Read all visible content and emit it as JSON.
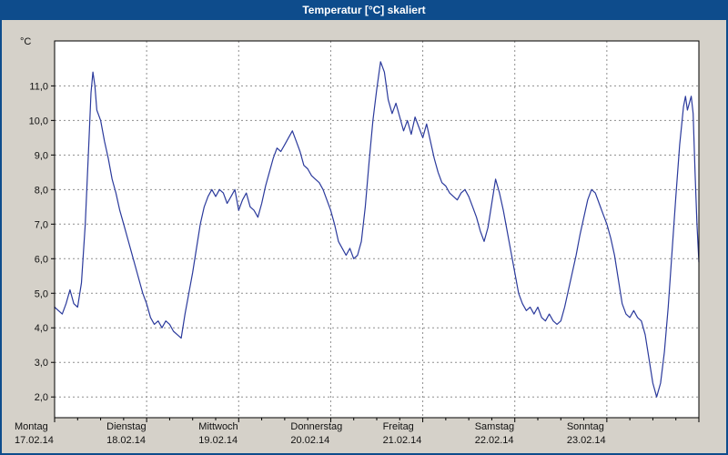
{
  "header": {
    "title": "Temperatur [°C] skaliert"
  },
  "chart_data": {
    "type": "line",
    "title": "Temperatur [°C] skaliert",
    "ylabel": "°C",
    "xlabel": "",
    "xmax": 168,
    "ylim": [
      1.4,
      12.3
    ],
    "grid": true,
    "legend": "none",
    "y_ticks": [
      {
        "v": 11,
        "label": "11,0"
      },
      {
        "v": 10,
        "label": "10,0"
      },
      {
        "v": 9,
        "label": "9,0"
      },
      {
        "v": 8,
        "label": "8,0"
      },
      {
        "v": 7,
        "label": "7,0"
      },
      {
        "v": 6,
        "label": "6,0"
      },
      {
        "v": 5,
        "label": "5,0"
      },
      {
        "v": 4,
        "label": "4,0"
      },
      {
        "v": 3,
        "label": "3,0"
      },
      {
        "v": 2,
        "label": "2,0"
      }
    ],
    "x_labels": [
      {
        "day": "Montag",
        "date": "17.02.14"
      },
      {
        "day": "Dienstag",
        "date": "18.02.14"
      },
      {
        "day": "Mittwoch",
        "date": "19.02.14"
      },
      {
        "day": "Donnerstag",
        "date": "20.02.14"
      },
      {
        "day": "Freitag",
        "date": "21.02.14"
      },
      {
        "day": "Samstag",
        "date": "22.02.14"
      },
      {
        "day": "Sonntag",
        "date": "23.02.14"
      }
    ],
    "series": [
      {
        "name": "Temperatur",
        "points": [
          [
            0,
            4.6
          ],
          [
            1,
            4.5
          ],
          [
            2,
            4.4
          ],
          [
            3,
            4.7
          ],
          [
            4,
            5.1
          ],
          [
            5,
            4.7
          ],
          [
            6,
            4.6
          ],
          [
            7,
            5.3
          ],
          [
            8,
            7.0
          ],
          [
            9,
            9.5
          ],
          [
            9.5,
            10.8
          ],
          [
            10,
            11.4
          ],
          [
            10.5,
            11.0
          ],
          [
            11,
            10.3
          ],
          [
            12,
            10.0
          ],
          [
            13,
            9.4
          ],
          [
            14,
            8.9
          ],
          [
            15,
            8.3
          ],
          [
            16,
            7.9
          ],
          [
            17,
            7.4
          ],
          [
            18,
            7.0
          ],
          [
            19,
            6.6
          ],
          [
            20,
            6.2
          ],
          [
            21,
            5.8
          ],
          [
            22,
            5.4
          ],
          [
            23,
            5.0
          ],
          [
            24,
            4.7
          ],
          [
            25,
            4.3
          ],
          [
            26,
            4.1
          ],
          [
            27,
            4.2
          ],
          [
            28,
            4.0
          ],
          [
            29,
            4.2
          ],
          [
            30,
            4.1
          ],
          [
            31,
            3.9
          ],
          [
            32,
            3.8
          ],
          [
            33,
            3.7
          ],
          [
            34,
            4.4
          ],
          [
            35,
            5.0
          ],
          [
            36,
            5.6
          ],
          [
            37,
            6.3
          ],
          [
            38,
            7.0
          ],
          [
            39,
            7.5
          ],
          [
            40,
            7.8
          ],
          [
            41,
            8.0
          ],
          [
            42,
            7.8
          ],
          [
            43,
            8.0
          ],
          [
            44,
            7.9
          ],
          [
            45,
            7.6
          ],
          [
            46,
            7.8
          ],
          [
            47,
            8.0
          ],
          [
            48,
            7.4
          ],
          [
            49,
            7.7
          ],
          [
            50,
            7.9
          ],
          [
            51,
            7.5
          ],
          [
            52,
            7.4
          ],
          [
            53,
            7.2
          ],
          [
            54,
            7.6
          ],
          [
            55,
            8.1
          ],
          [
            56,
            8.5
          ],
          [
            57,
            8.9
          ],
          [
            58,
            9.2
          ],
          [
            59,
            9.1
          ],
          [
            60,
            9.3
          ],
          [
            61,
            9.5
          ],
          [
            62,
            9.7
          ],
          [
            63,
            9.4
          ],
          [
            64,
            9.1
          ],
          [
            65,
            8.7
          ],
          [
            66,
            8.6
          ],
          [
            67,
            8.4
          ],
          [
            68,
            8.3
          ],
          [
            69,
            8.2
          ],
          [
            70,
            8.0
          ],
          [
            71,
            7.7
          ],
          [
            72,
            7.4
          ],
          [
            73,
            7.0
          ],
          [
            74,
            6.5
          ],
          [
            75,
            6.3
          ],
          [
            76,
            6.1
          ],
          [
            77,
            6.3
          ],
          [
            78,
            6.0
          ],
          [
            79,
            6.1
          ],
          [
            80,
            6.5
          ],
          [
            81,
            7.5
          ],
          [
            82,
            8.8
          ],
          [
            83,
            10.0
          ],
          [
            84,
            10.9
          ],
          [
            85,
            11.7
          ],
          [
            86,
            11.4
          ],
          [
            87,
            10.6
          ],
          [
            88,
            10.2
          ],
          [
            89,
            10.5
          ],
          [
            90,
            10.1
          ],
          [
            91,
            9.7
          ],
          [
            92,
            10.0
          ],
          [
            93,
            9.6
          ],
          [
            94,
            10.1
          ],
          [
            95,
            9.8
          ],
          [
            96,
            9.5
          ],
          [
            97,
            9.9
          ],
          [
            98,
            9.4
          ],
          [
            99,
            8.9
          ],
          [
            100,
            8.5
          ],
          [
            101,
            8.2
          ],
          [
            102,
            8.1
          ],
          [
            103,
            7.9
          ],
          [
            104,
            7.8
          ],
          [
            105,
            7.7
          ],
          [
            106,
            7.9
          ],
          [
            107,
            8.0
          ],
          [
            108,
            7.8
          ],
          [
            109,
            7.5
          ],
          [
            110,
            7.2
          ],
          [
            111,
            6.8
          ],
          [
            112,
            6.5
          ],
          [
            113,
            6.9
          ],
          [
            114,
            7.6
          ],
          [
            115,
            8.3
          ],
          [
            116,
            7.9
          ],
          [
            117,
            7.4
          ],
          [
            118,
            6.8
          ],
          [
            119,
            6.2
          ],
          [
            120,
            5.6
          ],
          [
            121,
            5.0
          ],
          [
            122,
            4.7
          ],
          [
            123,
            4.5
          ],
          [
            124,
            4.6
          ],
          [
            125,
            4.4
          ],
          [
            126,
            4.6
          ],
          [
            127,
            4.3
          ],
          [
            128,
            4.2
          ],
          [
            129,
            4.4
          ],
          [
            130,
            4.2
          ],
          [
            131,
            4.1
          ],
          [
            132,
            4.2
          ],
          [
            133,
            4.6
          ],
          [
            134,
            5.1
          ],
          [
            135,
            5.6
          ],
          [
            136,
            6.1
          ],
          [
            137,
            6.7
          ],
          [
            138,
            7.2
          ],
          [
            139,
            7.7
          ],
          [
            140,
            8.0
          ],
          [
            141,
            7.9
          ],
          [
            142,
            7.6
          ],
          [
            143,
            7.3
          ],
          [
            144,
            7.0
          ],
          [
            145,
            6.6
          ],
          [
            146,
            6.1
          ],
          [
            147,
            5.4
          ],
          [
            148,
            4.7
          ],
          [
            149,
            4.4
          ],
          [
            150,
            4.3
          ],
          [
            151,
            4.5
          ],
          [
            152,
            4.3
          ],
          [
            153,
            4.2
          ],
          [
            154,
            3.8
          ],
          [
            155,
            3.1
          ],
          [
            156,
            2.4
          ],
          [
            157,
            2.0
          ],
          [
            158,
            2.4
          ],
          [
            159,
            3.3
          ],
          [
            160,
            4.6
          ],
          [
            161,
            6.2
          ],
          [
            162,
            7.8
          ],
          [
            163,
            9.3
          ],
          [
            164,
            10.4
          ],
          [
            164.5,
            10.7
          ],
          [
            165,
            10.3
          ],
          [
            165.5,
            10.5
          ],
          [
            166,
            10.7
          ],
          [
            166.5,
            10.2
          ],
          [
            167,
            8.5
          ],
          [
            167.5,
            7.0
          ],
          [
            168,
            5.9
          ]
        ]
      }
    ],
    "colors": {
      "line": "#2b3a9c",
      "grid": "#8f8f8f",
      "axis": "#000000",
      "titlebar": "#0e4c8c",
      "background": "#d5d1c9",
      "plot_bg": "#ffffff"
    }
  }
}
